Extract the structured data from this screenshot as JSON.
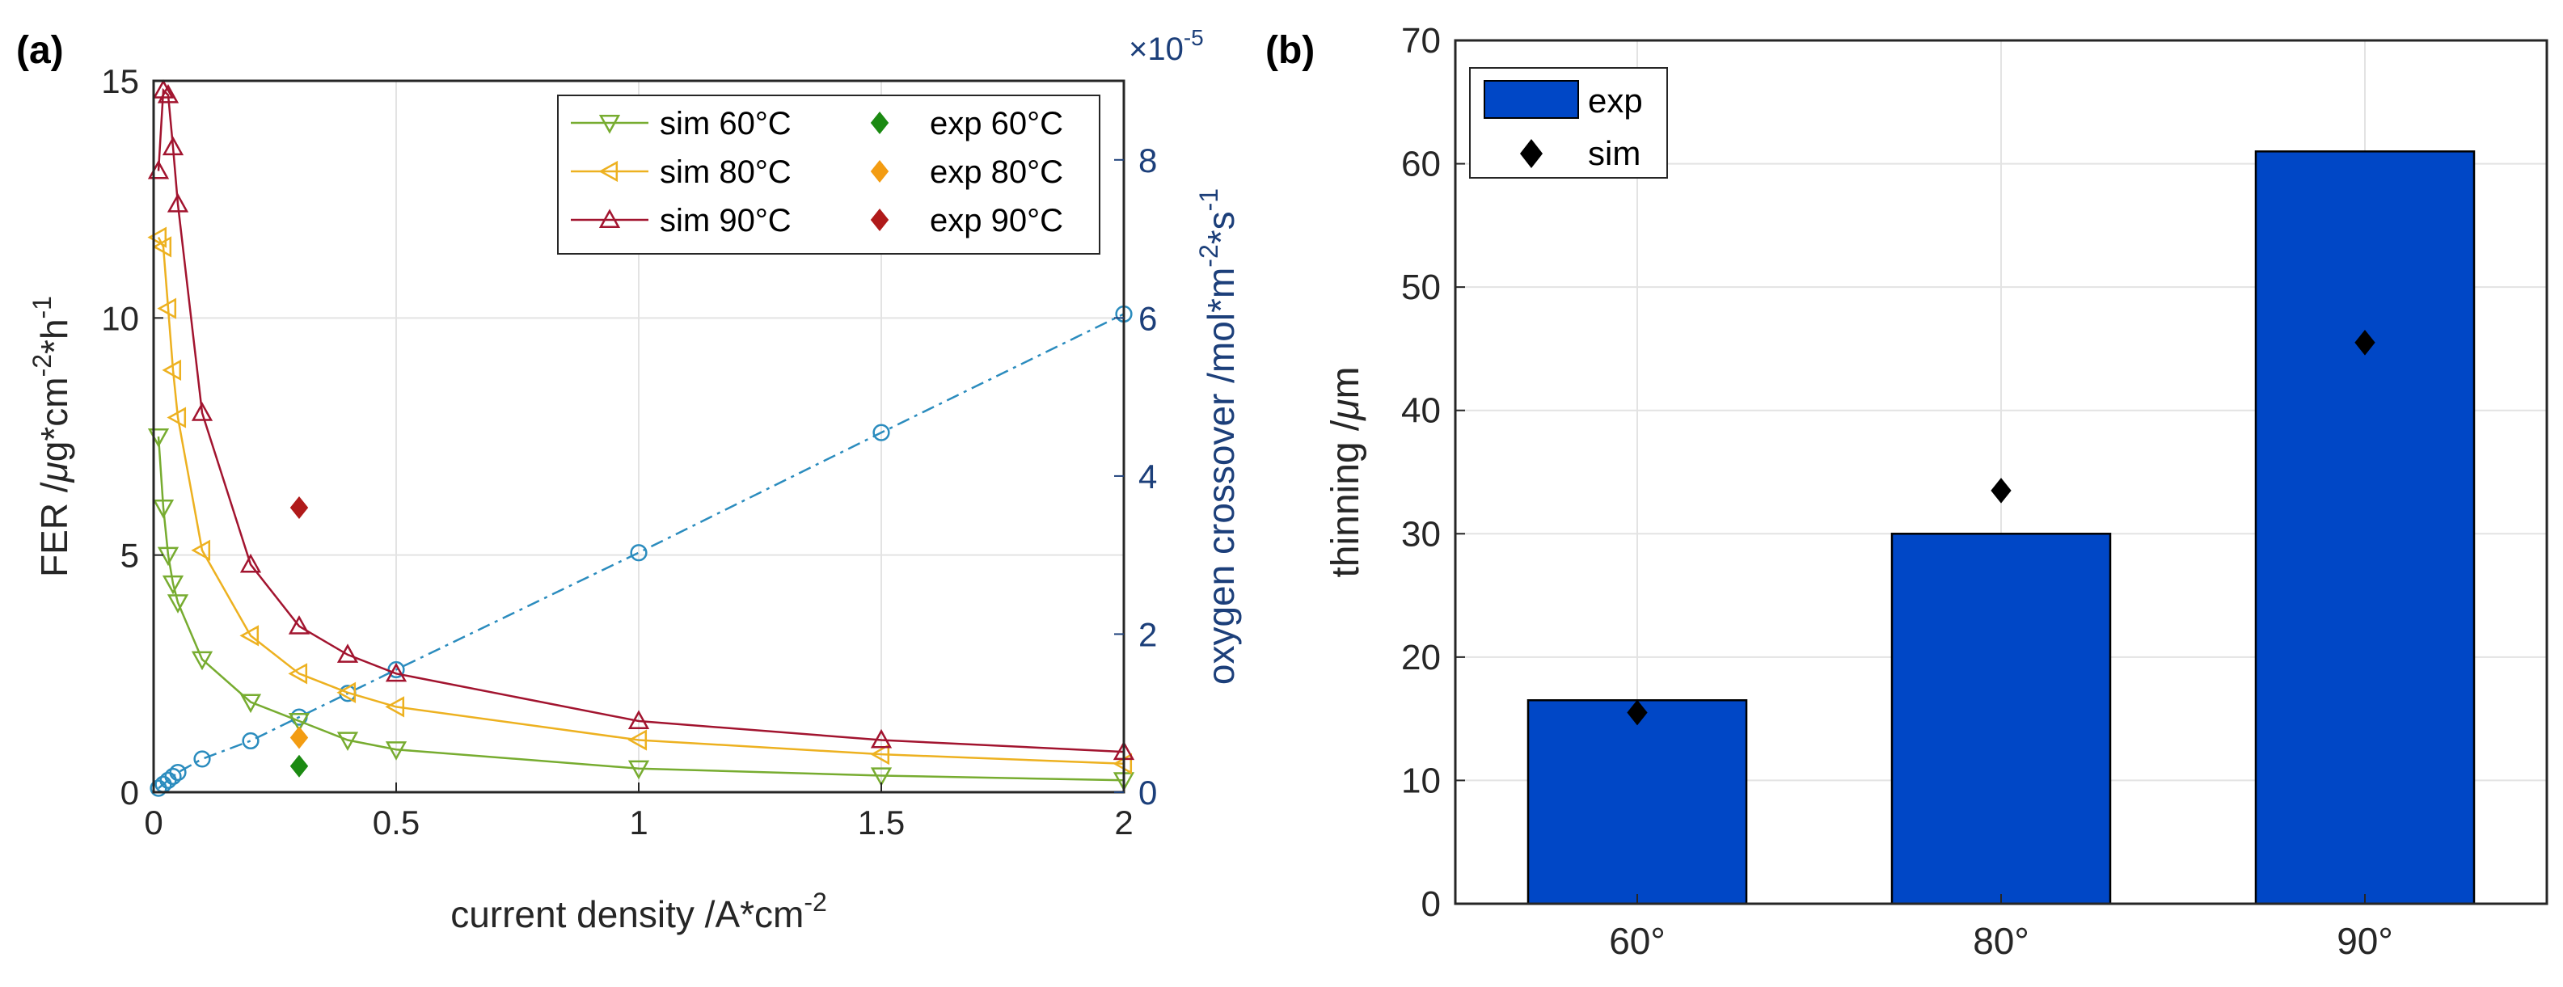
{
  "chart_data": [
    {
      "panel": "(a)",
      "type": "line",
      "xlabel_text": "current density /A*cm",
      "xlabel_sup": "-2",
      "ylabel_left_parts": [
        "FER /",
        "μ",
        "g*cm",
        "-2",
        "*h",
        "-1"
      ],
      "ylabel_right_parts": [
        "oxygen crossover /mol*m",
        "-2",
        "*s",
        "-1"
      ],
      "right_axis_exponent_base": "×10",
      "right_axis_exponent_power": "-5",
      "xlim": [
        0,
        2
      ],
      "ylim_left": [
        0,
        15
      ],
      "ylim_right": [
        0,
        9
      ],
      "xticks": [
        "0",
        "0.5",
        "1",
        "1.5",
        "2"
      ],
      "xtick_values": [
        0,
        0.5,
        1,
        1.5,
        2
      ],
      "yticks_left": [
        "0",
        "5",
        "10",
        "15"
      ],
      "ytick_left_values": [
        0,
        5,
        10,
        15
      ],
      "yticks_right": [
        "0",
        "2",
        "4",
        "6",
        "8"
      ],
      "ytick_right_values": [
        0,
        2,
        4,
        6,
        8
      ],
      "grid": true,
      "legend_position": "top-right",
      "series": [
        {
          "name": "sim 60°C",
          "axis": "left",
          "marker": "triangle-down",
          "color": "#77ac30",
          "x": [
            0.01,
            0.02,
            0.03,
            0.04,
            0.05,
            0.1,
            0.2,
            0.3,
            0.4,
            0.5,
            1,
            1.5,
            2
          ],
          "y": [
            7.5,
            6.0,
            5.0,
            4.4,
            4.0,
            2.8,
            1.9,
            1.5,
            1.1,
            0.9,
            0.5,
            0.35,
            0.25
          ]
        },
        {
          "name": "sim 80°C",
          "axis": "left",
          "marker": "triangle-left",
          "color": "#edb120",
          "x": [
            0.01,
            0.02,
            0.03,
            0.04,
            0.05,
            0.1,
            0.2,
            0.3,
            0.4,
            0.5,
            1,
            1.5,
            2
          ],
          "y": [
            11.7,
            11.5,
            10.2,
            8.9,
            7.9,
            5.1,
            3.3,
            2.5,
            2.1,
            1.8,
            1.1,
            0.8,
            0.6
          ]
        },
        {
          "name": "sim 90°C",
          "axis": "left",
          "marker": "triangle-up",
          "color": "#a2142f",
          "x": [
            0.01,
            0.02,
            0.03,
            0.04,
            0.05,
            0.1,
            0.2,
            0.3,
            0.4,
            0.5,
            1,
            1.5,
            2
          ],
          "y": [
            13.1,
            14.8,
            14.7,
            13.6,
            12.4,
            8.0,
            4.8,
            3.5,
            2.9,
            2.5,
            1.5,
            1.1,
            0.85
          ]
        },
        {
          "name": "exp 60°C",
          "axis": "left",
          "marker": "diamond",
          "color": "#1b8a12",
          "x": [
            0.3
          ],
          "y": [
            0.55
          ]
        },
        {
          "name": "exp 80°C",
          "axis": "left",
          "marker": "diamond",
          "color": "#f39c12",
          "x": [
            0.3
          ],
          "y": [
            1.15
          ]
        },
        {
          "name": "exp 90°C",
          "axis": "left",
          "marker": "diamond",
          "color": "#b01a1a",
          "x": [
            0.3
          ],
          "y": [
            6.0
          ]
        },
        {
          "name": "",
          "axis": "right",
          "marker": "circle",
          "color": "#2b8cbe",
          "dashed": true,
          "x": [
            0.01,
            0.02,
            0.03,
            0.04,
            0.05,
            0.1,
            0.2,
            0.3,
            0.4,
            0.5,
            1,
            1.5,
            2
          ],
          "y": [
            0.05,
            0.1,
            0.15,
            0.2,
            0.25,
            0.42,
            0.65,
            0.95,
            1.25,
            1.55,
            3.03,
            4.55,
            6.05
          ]
        }
      ]
    },
    {
      "panel": "(b)",
      "type": "bar",
      "ylabel_parts": [
        "thinning /",
        "μ",
        "m"
      ],
      "categories": [
        "60°",
        "80°",
        "90°"
      ],
      "ylim": [
        0,
        70
      ],
      "yticks": [
        "0",
        "10",
        "20",
        "30",
        "40",
        "50",
        "60",
        "70"
      ],
      "ytick_values": [
        0,
        10,
        20,
        30,
        40,
        50,
        60,
        70
      ],
      "grid": true,
      "legend_position": "top-left",
      "series": [
        {
          "name": "exp",
          "type": "bar",
          "color": "#0047c6",
          "values": [
            16.5,
            30,
            61
          ]
        },
        {
          "name": "sim",
          "type": "marker",
          "marker": "diamond",
          "color": "#000000",
          "values": [
            15.5,
            33.5,
            45.5
          ]
        }
      ]
    }
  ]
}
